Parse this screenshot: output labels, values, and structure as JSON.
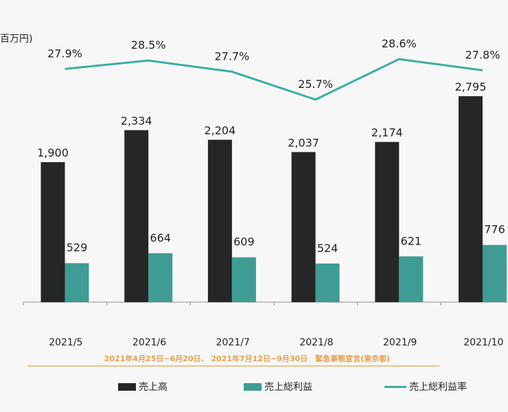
{
  "unit_label": "百万円)",
  "colors": {
    "sales": "#262626",
    "gross_profit": "#3e9c94",
    "margin_line": "#3aaea4",
    "emergency": "#e8a04c",
    "axis": "#8c8c8c",
    "text": "#222222"
  },
  "legend": {
    "sales": "売上高",
    "gross_profit": "売上総利益",
    "margin": "売上総利益率"
  },
  "chart_data": {
    "type": "bar",
    "title": "",
    "xlabel": "",
    "ylabel": "百万円",
    "ylim": [
      0,
      3200
    ],
    "categories": [
      "2021/5",
      "2021/6",
      "2021/7",
      "2021/8",
      "2021/9",
      "2021/10"
    ],
    "series": [
      {
        "name": "売上高",
        "type": "bar",
        "values": [
          1900,
          2334,
          2204,
          2037,
          2174,
          2795
        ],
        "labels": [
          "1,900",
          "2,334",
          "2,204",
          "2,037",
          "2,174",
          "2,795"
        ]
      },
      {
        "name": "売上総利益",
        "type": "bar",
        "values": [
          529,
          664,
          609,
          524,
          621,
          776
        ],
        "labels": [
          "529",
          "664",
          "609",
          "524",
          "621",
          "776"
        ]
      },
      {
        "name": "売上総利益率",
        "type": "line",
        "values": [
          27.9,
          28.5,
          27.7,
          25.7,
          28.6,
          27.8
        ],
        "labels": [
          "27.9%",
          "28.5%",
          "27.7%",
          "25.7%",
          "28.6%",
          "27.8%"
        ]
      }
    ],
    "annotation": "2021年4月25日~6月20日、 2021年7月12日~9月30日　緊急事態宣言(東京都)"
  }
}
